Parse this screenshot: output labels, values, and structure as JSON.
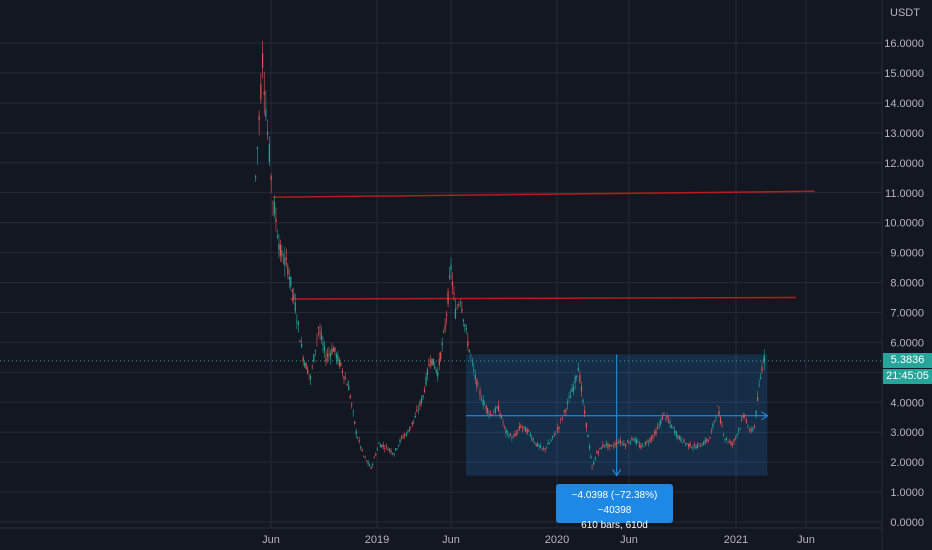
{
  "chart_data": {
    "type": "candlestick",
    "unit": "USDT",
    "y_axis_ticks": [
      "16.0000",
      "15.0000",
      "14.0000",
      "13.0000",
      "12.0000",
      "11.0000",
      "10.0000",
      "9.0000",
      "8.0000",
      "7.0000",
      "6.0000",
      "5.0000",
      "4.0000",
      "3.0000",
      "2.0000",
      "1.0000",
      "0.0000"
    ],
    "ylim": [
      0,
      16.5
    ],
    "x_axis_ticks": [
      "Jun",
      "2019",
      "Jun",
      "2020",
      "Jun",
      "2021",
      "Jun"
    ],
    "price_series": [
      {
        "date": "2018-05",
        "value": 11.5
      },
      {
        "date": "2018-05-15",
        "value": 15.5
      },
      {
        "date": "2018-05-25",
        "value": 13.0
      },
      {
        "date": "2018-06-05",
        "value": 10.8
      },
      {
        "date": "2018-06-20",
        "value": 9.0
      },
      {
        "date": "2018-07-05",
        "value": 8.5
      },
      {
        "date": "2018-07-20",
        "value": 7.2
      },
      {
        "date": "2018-08-05",
        "value": 5.5
      },
      {
        "date": "2018-08-20",
        "value": 4.8
      },
      {
        "date": "2018-09-05",
        "value": 6.5
      },
      {
        "date": "2018-09-20",
        "value": 5.5
      },
      {
        "date": "2018-10-05",
        "value": 5.8
      },
      {
        "date": "2018-10-20",
        "value": 5.2
      },
      {
        "date": "2018-11-05",
        "value": 4.5
      },
      {
        "date": "2018-11-20",
        "value": 3.0
      },
      {
        "date": "2018-12-05",
        "value": 2.2
      },
      {
        "date": "2018-12-20",
        "value": 1.8
      },
      {
        "date": "2019-01-05",
        "value": 2.6
      },
      {
        "date": "2019-01-20",
        "value": 2.5
      },
      {
        "date": "2019-02-05",
        "value": 2.3
      },
      {
        "date": "2019-02-20",
        "value": 2.8
      },
      {
        "date": "2019-03-05",
        "value": 3.0
      },
      {
        "date": "2019-03-20",
        "value": 3.5
      },
      {
        "date": "2019-04-05",
        "value": 4.2
      },
      {
        "date": "2019-04-20",
        "value": 5.5
      },
      {
        "date": "2019-05-05",
        "value": 5.0
      },
      {
        "date": "2019-05-20",
        "value": 6.5
      },
      {
        "date": "2019-06-01",
        "value": 8.5
      },
      {
        "date": "2019-06-10",
        "value": 7.0
      },
      {
        "date": "2019-06-20",
        "value": 7.5
      },
      {
        "date": "2019-07-05",
        "value": 6.0
      },
      {
        "date": "2019-07-20",
        "value": 4.8
      },
      {
        "date": "2019-08-05",
        "value": 4.0
      },
      {
        "date": "2019-08-20",
        "value": 3.6
      },
      {
        "date": "2019-09-05",
        "value": 3.8
      },
      {
        "date": "2019-09-20",
        "value": 3.0
      },
      {
        "date": "2019-10-05",
        "value": 2.8
      },
      {
        "date": "2019-10-20",
        "value": 3.2
      },
      {
        "date": "2019-11-05",
        "value": 3.0
      },
      {
        "date": "2019-11-20",
        "value": 2.6
      },
      {
        "date": "2019-12-05",
        "value": 2.4
      },
      {
        "date": "2019-12-20",
        "value": 2.7
      },
      {
        "date": "2020-01-05",
        "value": 3.2
      },
      {
        "date": "2020-01-20",
        "value": 3.8
      },
      {
        "date": "2020-02-05",
        "value": 4.5
      },
      {
        "date": "2020-02-15",
        "value": 5.2
      },
      {
        "date": "2020-02-25",
        "value": 4.0
      },
      {
        "date": "2020-03-10",
        "value": 2.5
      },
      {
        "date": "2020-03-15",
        "value": 1.8
      },
      {
        "date": "2020-03-25",
        "value": 2.3
      },
      {
        "date": "2020-04-10",
        "value": 2.6
      },
      {
        "date": "2020-04-25",
        "value": 2.5
      },
      {
        "date": "2020-05-10",
        "value": 2.7
      },
      {
        "date": "2020-05-25",
        "value": 2.6
      },
      {
        "date": "2020-06-10",
        "value": 2.8
      },
      {
        "date": "2020-06-25",
        "value": 2.5
      },
      {
        "date": "2020-07-10",
        "value": 2.7
      },
      {
        "date": "2020-07-25",
        "value": 3.0
      },
      {
        "date": "2020-08-10",
        "value": 3.6
      },
      {
        "date": "2020-08-25",
        "value": 3.2
      },
      {
        "date": "2020-09-10",
        "value": 2.8
      },
      {
        "date": "2020-09-25",
        "value": 2.6
      },
      {
        "date": "2020-10-10",
        "value": 2.5
      },
      {
        "date": "2020-10-25",
        "value": 2.6
      },
      {
        "date": "2020-11-10",
        "value": 2.8
      },
      {
        "date": "2020-11-25",
        "value": 3.8
      },
      {
        "date": "2020-12-10",
        "value": 2.8
      },
      {
        "date": "2020-12-25",
        "value": 2.6
      },
      {
        "date": "2021-01-10",
        "value": 3.2
      },
      {
        "date": "2021-01-20",
        "value": 3.6
      },
      {
        "date": "2021-01-30",
        "value": 3.0
      },
      {
        "date": "2021-02-10",
        "value": 3.2
      },
      {
        "date": "2021-02-20",
        "value": 4.5
      },
      {
        "date": "2021-03-01",
        "value": 5.5
      },
      {
        "date": "2021-03-05",
        "value": 5.38
      }
    ],
    "resistance_lines": [
      {
        "from": {
          "date": "2018-06-05",
          "value": 10.85
        },
        "to": {
          "date": "2021-06-20",
          "value": 11.05
        },
        "color": "#b71c1c"
      },
      {
        "from": {
          "date": "2018-07-10",
          "value": 7.45
        },
        "to": {
          "date": "2021-05-10",
          "value": 7.5
        },
        "color": "#b71c1c"
      }
    ],
    "measure_range": {
      "from": {
        "date": "2019-07-01",
        "value": 5.6
      },
      "to": {
        "date": "2021-03-10",
        "value": 1.55
      },
      "mid_value": 3.55
    },
    "current_price": "5.3836",
    "countdown": "21:45:05",
    "measure_line1": "−4.0398 (−72.38%) −40398",
    "measure_line2": "610 bars, 610d",
    "colors": {
      "up": "#26a69a",
      "down": "#ef5350",
      "accent": "#1e88e5",
      "resistance": "#b71c1c"
    }
  }
}
